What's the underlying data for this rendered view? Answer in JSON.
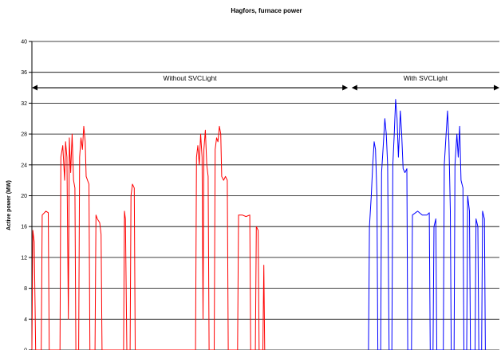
{
  "chart_data": {
    "type": "line",
    "title": "Hagfors, furnace power",
    "xlabel": "",
    "ylabel": "Active power (MW)",
    "ylim": [
      0,
      40
    ],
    "yticks": [
      0,
      4,
      8,
      12,
      16,
      20,
      24,
      28,
      32,
      36,
      40
    ],
    "grid": "horizontal",
    "annotations": [
      {
        "label": "Without SVCLight",
        "from": 0,
        "to": 0.676,
        "y": 34
      },
      {
        "label": "With SVCLight",
        "from": 0.684,
        "to": 1.0,
        "y": 34
      }
    ],
    "series": [
      {
        "color": "#ff0000",
        "x_range": [
          0,
          0.58
        ],
        "points": [
          [
            0.0,
            0
          ],
          [
            0.002,
            15.5
          ],
          [
            0.005,
            14
          ],
          [
            0.008,
            0
          ],
          [
            0.02,
            0
          ],
          [
            0.022,
            17.5
          ],
          [
            0.03,
            18
          ],
          [
            0.035,
            17.8
          ],
          [
            0.037,
            0
          ],
          [
            0.06,
            0
          ],
          [
            0.062,
            25
          ],
          [
            0.066,
            26.5
          ],
          [
            0.07,
            22
          ],
          [
            0.072,
            27
          ],
          [
            0.075,
            25
          ],
          [
            0.078,
            4
          ],
          [
            0.08,
            27.5
          ],
          [
            0.083,
            23
          ],
          [
            0.086,
            28
          ],
          [
            0.089,
            22
          ],
          [
            0.092,
            21
          ],
          [
            0.094,
            0
          ],
          [
            0.1,
            0
          ],
          [
            0.102,
            25
          ],
          [
            0.105,
            27.5
          ],
          [
            0.108,
            26
          ],
          [
            0.111,
            29
          ],
          [
            0.114,
            27
          ],
          [
            0.116,
            22.5
          ],
          [
            0.119,
            22
          ],
          [
            0.122,
            21.5
          ],
          [
            0.124,
            0
          ],
          [
            0.135,
            0
          ],
          [
            0.137,
            17.5
          ],
          [
            0.14,
            17
          ],
          [
            0.145,
            16.5
          ],
          [
            0.148,
            15
          ],
          [
            0.15,
            0
          ],
          [
            0.196,
            0
          ],
          [
            0.198,
            18
          ],
          [
            0.2,
            17
          ],
          [
            0.203,
            0
          ],
          [
            0.21,
            0
          ],
          [
            0.212,
            20
          ],
          [
            0.215,
            21.5
          ],
          [
            0.219,
            21
          ],
          [
            0.221,
            0
          ],
          [
            0.35,
            0
          ],
          [
            0.352,
            25
          ],
          [
            0.355,
            26.5
          ],
          [
            0.358,
            24
          ],
          [
            0.361,
            28
          ],
          [
            0.364,
            25
          ],
          [
            0.366,
            4
          ],
          [
            0.368,
            26
          ],
          [
            0.371,
            28.5
          ],
          [
            0.374,
            24
          ],
          [
            0.377,
            22.5
          ],
          [
            0.379,
            0
          ],
          [
            0.39,
            0
          ],
          [
            0.392,
            26
          ],
          [
            0.395,
            27.5
          ],
          [
            0.398,
            27
          ],
          [
            0.401,
            29
          ],
          [
            0.404,
            28
          ],
          [
            0.406,
            22.5
          ],
          [
            0.41,
            22
          ],
          [
            0.414,
            22.5
          ],
          [
            0.418,
            22
          ],
          [
            0.42,
            0
          ],
          [
            0.44,
            0
          ],
          [
            0.442,
            17.5
          ],
          [
            0.45,
            17.5
          ],
          [
            0.458,
            17.3
          ],
          [
            0.466,
            17.5
          ],
          [
            0.468,
            0
          ],
          [
            0.478,
            0
          ],
          [
            0.48,
            16
          ],
          [
            0.484,
            15.5
          ],
          [
            0.486,
            0
          ],
          [
            0.494,
            0
          ],
          [
            0.496,
            11
          ],
          [
            0.498,
            0
          ]
        ]
      },
      {
        "color": "#0000ff",
        "x_range": [
          0.72,
          1.0
        ],
        "points": [
          [
            0.72,
            0
          ],
          [
            0.722,
            16
          ],
          [
            0.726,
            20
          ],
          [
            0.729,
            24
          ],
          [
            0.732,
            27
          ],
          [
            0.735,
            26
          ],
          [
            0.738,
            20
          ],
          [
            0.74,
            0
          ],
          [
            0.746,
            0
          ],
          [
            0.748,
            23
          ],
          [
            0.752,
            27
          ],
          [
            0.755,
            30
          ],
          [
            0.758,
            28
          ],
          [
            0.761,
            24
          ],
          [
            0.764,
            0
          ],
          [
            0.77,
            0
          ],
          [
            0.772,
            24
          ],
          [
            0.775,
            28
          ],
          [
            0.778,
            32.5
          ],
          [
            0.781,
            30
          ],
          [
            0.784,
            25
          ],
          [
            0.788,
            31
          ],
          [
            0.791,
            28
          ],
          [
            0.794,
            23.5
          ],
          [
            0.798,
            23
          ],
          [
            0.802,
            23.5
          ],
          [
            0.804,
            0
          ],
          [
            0.812,
            0
          ],
          [
            0.814,
            17.5
          ],
          [
            0.825,
            18
          ],
          [
            0.835,
            17.5
          ],
          [
            0.845,
            17.5
          ],
          [
            0.85,
            17.8
          ],
          [
            0.852,
            0
          ],
          [
            0.858,
            0
          ],
          [
            0.86,
            16
          ],
          [
            0.864,
            17
          ],
          [
            0.866,
            0
          ],
          [
            0.88,
            0
          ],
          [
            0.882,
            24
          ],
          [
            0.886,
            28
          ],
          [
            0.889,
            31
          ],
          [
            0.892,
            27
          ],
          [
            0.895,
            18
          ],
          [
            0.897,
            0
          ],
          [
            0.903,
            0
          ],
          [
            0.905,
            24
          ],
          [
            0.909,
            28
          ],
          [
            0.912,
            25
          ],
          [
            0.915,
            29
          ],
          [
            0.918,
            22
          ],
          [
            0.922,
            21
          ],
          [
            0.924,
            0
          ],
          [
            0.93,
            0
          ],
          [
            0.932,
            20
          ],
          [
            0.936,
            18
          ],
          [
            0.938,
            0
          ],
          [
            0.948,
            0
          ],
          [
            0.95,
            17
          ],
          [
            0.954,
            16
          ],
          [
            0.956,
            0
          ],
          [
            0.962,
            0
          ],
          [
            0.964,
            18
          ],
          [
            0.968,
            17
          ],
          [
            0.97,
            0
          ]
        ]
      }
    ]
  }
}
